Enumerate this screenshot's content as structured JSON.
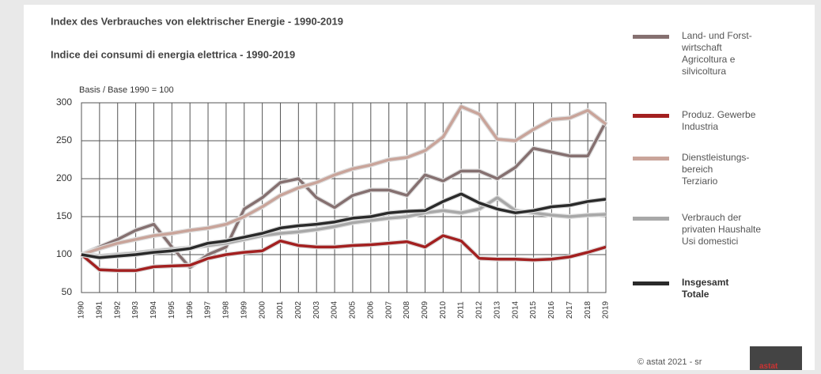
{
  "chart_data": {
    "type": "line",
    "title": "Index des Verbrauches von elektrischer Energie - 1990-2019",
    "subtitle": "Indice dei consumi di energia elettrica - 1990-2019",
    "y_label": "Basis / Base 1990 = 100",
    "categories": [
      "1990",
      "1991",
      "1992",
      "1993",
      "1994",
      "1995",
      "1996",
      "1997",
      "1998",
      "1999",
      "2000",
      "2001",
      "2002",
      "2003",
      "2004",
      "2005",
      "2006",
      "2007",
      "2008",
      "2009",
      "2010",
      "2011",
      "2012",
      "2013",
      "2014",
      "2015",
      "2016",
      "2017",
      "2018",
      "2019"
    ],
    "series": [
      {
        "name": "Land- und Forst-\nwirtschaft\nAgricoltura e\nsilvicoltura",
        "color": "#857070",
        "values": [
          100,
          110,
          120,
          132,
          140,
          110,
          83,
          100,
          110,
          160,
          175,
          195,
          200,
          175,
          162,
          178,
          185,
          185,
          178,
          205,
          197,
          210,
          210,
          200,
          215,
          240,
          235,
          230,
          230,
          275
        ]
      },
      {
        "name": "Produz. Gewerbe\nIndustria",
        "color": "#a32020",
        "values": [
          100,
          80,
          79,
          79,
          84,
          85,
          86,
          95,
          100,
          103,
          105,
          118,
          112,
          110,
          110,
          112,
          113,
          115,
          117,
          110,
          125,
          118,
          95,
          94,
          94,
          93,
          94,
          97,
          103,
          110
        ]
      },
      {
        "name": "Dienstleistungs-\nbereich\nTerziario",
        "color": "#c9a49a",
        "values": [
          100,
          108,
          115,
          120,
          125,
          128,
          132,
          135,
          140,
          150,
          163,
          178,
          188,
          195,
          205,
          213,
          218,
          225,
          228,
          237,
          255,
          295,
          285,
          252,
          250,
          265,
          278,
          280,
          290,
          272
        ]
      },
      {
        "name": "Verbrauch der\nprivaten Haushalte\nUsi domestici",
        "color": "#a8a8a8",
        "values": [
          100,
          98,
          100,
          102,
          105,
          107,
          109,
          112,
          115,
          120,
          125,
          128,
          130,
          133,
          137,
          142,
          145,
          148,
          150,
          155,
          158,
          155,
          160,
          175,
          158,
          155,
          152,
          150,
          152,
          153
        ]
      },
      {
        "name": "Insgesamt\nTotale",
        "color": "#2a2a2a",
        "values": [
          100,
          96,
          98,
          100,
          103,
          105,
          108,
          115,
          118,
          123,
          128,
          135,
          138,
          140,
          143,
          148,
          150,
          155,
          157,
          158,
          170,
          180,
          168,
          160,
          155,
          158,
          163,
          165,
          170,
          173
        ]
      }
    ],
    "ylim": [
      50,
      300
    ],
    "yticks": [
      50,
      100,
      150,
      200,
      250,
      300
    ],
    "grid": true
  },
  "copyright": "© astat 2021 - sr",
  "logo": "astat"
}
